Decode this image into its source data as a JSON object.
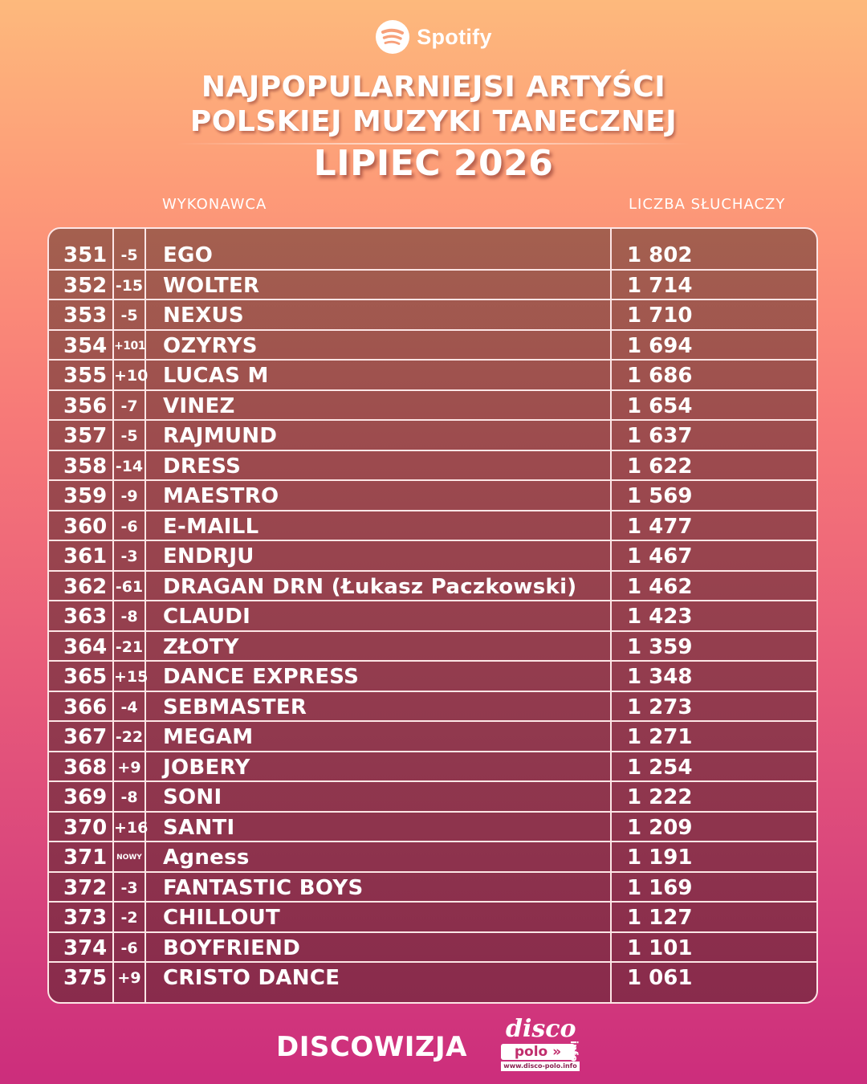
{
  "brand": {
    "logo_text": "Spotify",
    "logo_icon": "spotify-icon"
  },
  "title": {
    "line1": "NAJPOPULARNIEJSI ARTYŚCI",
    "line2": "POLSKIEJ MUZYKI TANECZNEJ",
    "period": "LIPIEC 2026"
  },
  "columns": {
    "artist": "WYKONAWCA",
    "listeners": "LICZBA SŁUCHACZY"
  },
  "rows": [
    {
      "rank": "351",
      "change": "-5",
      "artist": "EGO",
      "listeners": "1 802"
    },
    {
      "rank": "352",
      "change": "-15",
      "artist": "WOLTER",
      "listeners": "1 714"
    },
    {
      "rank": "353",
      "change": "-5",
      "artist": "NEXUS",
      "listeners": "1 710"
    },
    {
      "rank": "354",
      "change": "+101",
      "artist": "OZYRYS",
      "listeners": "1 694"
    },
    {
      "rank": "355",
      "change": "+10",
      "artist": "LUCAS M",
      "listeners": "1 686"
    },
    {
      "rank": "356",
      "change": "-7",
      "artist": "VINEZ",
      "listeners": "1 654"
    },
    {
      "rank": "357",
      "change": "-5",
      "artist": "RAJMUND",
      "listeners": "1 637"
    },
    {
      "rank": "358",
      "change": "-14",
      "artist": "DRESS",
      "listeners": "1 622"
    },
    {
      "rank": "359",
      "change": "-9",
      "artist": "MAESTRO",
      "listeners": "1 569"
    },
    {
      "rank": "360",
      "change": "-6",
      "artist": "E-MAILL",
      "listeners": "1 477"
    },
    {
      "rank": "361",
      "change": "-3",
      "artist": "ENDRJU",
      "listeners": "1 467"
    },
    {
      "rank": "362",
      "change": "-61",
      "artist": "DRAGAN DRN (Łukasz Paczkowski)",
      "listeners": "1 462"
    },
    {
      "rank": "363",
      "change": "-8",
      "artist": "CLAUDI",
      "listeners": "1 423"
    },
    {
      "rank": "364",
      "change": "-21",
      "artist": "ZŁOTY",
      "listeners": "1 359"
    },
    {
      "rank": "365",
      "change": "+15",
      "artist": "DANCE EXPRESS",
      "listeners": "1 348"
    },
    {
      "rank": "366",
      "change": "-4",
      "artist": "SEBMASTER",
      "listeners": "1 273"
    },
    {
      "rank": "367",
      "change": "-22",
      "artist": "MEGAM",
      "listeners": "1 271"
    },
    {
      "rank": "368",
      "change": "+9",
      "artist": "JOBERY",
      "listeners": "1 254"
    },
    {
      "rank": "369",
      "change": "-8",
      "artist": "SONI",
      "listeners": "1 222"
    },
    {
      "rank": "370",
      "change": "+16",
      "artist": "SANTI",
      "listeners": "1 209"
    },
    {
      "rank": "371",
      "change": "NOWY",
      "artist": "Agness",
      "listeners": "1 191"
    },
    {
      "rank": "372",
      "change": "-3",
      "artist": "FANTASTIC BOYS",
      "listeners": "1 169"
    },
    {
      "rank": "373",
      "change": "-2",
      "artist": "CHILLOUT",
      "listeners": "1 127"
    },
    {
      "rank": "374",
      "change": "-6",
      "artist": "BOYFRIEND",
      "listeners": "1 101"
    },
    {
      "rank": "375",
      "change": "+9",
      "artist": "CRISTO DANCE",
      "listeners": "1 061"
    }
  ],
  "footer": {
    "brand": "DISCOWIZJA",
    "partner_logo": {
      "line1": "disco",
      "line2": "polo",
      "suffix": "info",
      "url": "www.disco-polo.info"
    }
  },
  "colors": {
    "table_border": "#fde6e6",
    "text": "#ffffff",
    "polo_accent": "#c02d6c"
  }
}
